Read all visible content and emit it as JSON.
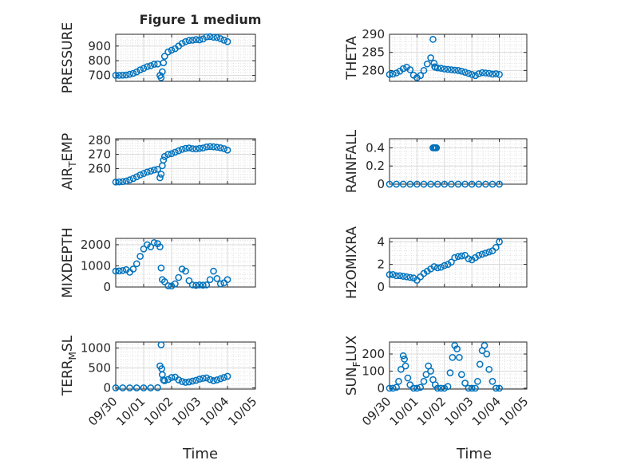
{
  "figure": {
    "title": "Figure 1 medium",
    "xlabel": "Time",
    "x_ticks": [
      "09/30",
      "10/01",
      "10/02",
      "10/03",
      "10/04",
      "10/05"
    ],
    "marker_color": "#0072BD",
    "axes_color": "#262626",
    "grid_color": "#d9d9d9"
  },
  "chart_data": [
    {
      "type": "scatter",
      "ylabel": "PRESSURE",
      "ylim": [
        660,
        980
      ],
      "y_ticks": [
        700,
        800,
        900
      ],
      "x": [
        "09/30 00:00",
        "09/30 03:00",
        "09/30 06:00",
        "09/30 09:00",
        "09/30 12:00",
        "09/30 15:00",
        "09/30 18:00",
        "09/30 21:00",
        "10/01 00:00",
        "10/01 03:00",
        "10/01 06:00",
        "10/01 09:00",
        "10/01 12:00",
        "10/01 14:00",
        "10/01 15:00",
        "10/01 16:00",
        "10/01 17:00",
        "10/01 18:00",
        "10/01 21:00",
        "10/02 00:00",
        "10/02 03:00",
        "10/02 06:00",
        "10/02 09:00",
        "10/02 12:00",
        "10/02 15:00",
        "10/02 18:00",
        "10/02 21:00",
        "10/03 00:00",
        "10/03 03:00",
        "10/03 06:00",
        "10/03 09:00",
        "10/03 12:00",
        "10/03 15:00",
        "10/03 18:00",
        "10/03 21:00",
        "10/04 00:00"
      ],
      "y": [
        701,
        701,
        702,
        703,
        708,
        714,
        724,
        738,
        748,
        760,
        766,
        776,
        778,
        700,
        685,
        725,
        786,
        830,
        860,
        872,
        882,
        900,
        918,
        930,
        938,
        940,
        944,
        942,
        948,
        962,
        964,
        960,
        958,
        950,
        940,
        930
      ]
    },
    {
      "type": "scatter",
      "ylabel": "THETA",
      "ylim": [
        277,
        290
      ],
      "y_ticks": [
        280,
        285,
        290
      ],
      "x": [
        "09/30 00:00",
        "09/30 03:00",
        "09/30 06:00",
        "09/30 09:00",
        "09/30 12:00",
        "09/30 15:00",
        "09/30 18:00",
        "09/30 21:00",
        "10/01 00:00",
        "10/01 03:00",
        "10/01 06:00",
        "10/01 09:00",
        "10/01 12:00",
        "10/01 14:00",
        "10/01 15:00",
        "10/01 15:30",
        "10/01 16:00",
        "10/01 18:00",
        "10/01 21:00",
        "10/02 00:00",
        "10/02 03:00",
        "10/02 06:00",
        "10/02 09:00",
        "10/02 12:00",
        "10/02 15:00",
        "10/02 18:00",
        "10/02 21:00",
        "10/03 00:00",
        "10/03 03:00",
        "10/03 06:00",
        "10/03 09:00",
        "10/03 12:00",
        "10/03 15:00",
        "10/03 18:00",
        "10/03 21:00",
        "10/04 00:00"
      ],
      "y": [
        278.9,
        279.0,
        279.3,
        279.8,
        280.5,
        280.9,
        280.2,
        278.7,
        278.0,
        278.6,
        280.0,
        281.8,
        283.5,
        288.6,
        282.0,
        281.0,
        280.9,
        280.7,
        280.6,
        280.4,
        280.3,
        280.2,
        280.1,
        280.0,
        279.8,
        279.5,
        279.2,
        278.9,
        278.6,
        279.1,
        279.4,
        279.3,
        279.2,
        279.0,
        279.1,
        278.9
      ]
    },
    {
      "type": "scatter",
      "ylabel": "AIR_TEMP",
      "ylim": [
        249,
        281
      ],
      "y_ticks": [
        260,
        270,
        280
      ],
      "x": [
        "09/30 00:00",
        "09/30 03:00",
        "09/30 06:00",
        "09/30 09:00",
        "09/30 12:00",
        "09/30 15:00",
        "09/30 18:00",
        "09/30 21:00",
        "10/01 00:00",
        "10/01 03:00",
        "10/01 06:00",
        "10/01 09:00",
        "10/01 12:00",
        "10/01 14:00",
        "10/01 15:00",
        "10/01 16:00",
        "10/01 17:00",
        "10/01 18:00",
        "10/01 21:00",
        "10/02 00:00",
        "10/02 03:00",
        "10/02 06:00",
        "10/02 09:00",
        "10/02 12:00",
        "10/02 15:00",
        "10/02 18:00",
        "10/02 21:00",
        "10/03 00:00",
        "10/03 03:00",
        "10/03 06:00",
        "10/03 09:00",
        "10/03 12:00",
        "10/03 15:00",
        "10/03 18:00",
        "10/03 21:00",
        "10/04 00:00"
      ],
      "y": [
        250.5,
        250.6,
        250.8,
        251.2,
        252.0,
        253.0,
        254.2,
        255.5,
        256.5,
        257.5,
        258.2,
        259.0,
        259.5,
        253.5,
        256.0,
        262.0,
        266.0,
        268.5,
        270.0,
        270.5,
        271.5,
        272.5,
        273.5,
        274.2,
        274.5,
        274.0,
        273.8,
        274.2,
        274.5,
        275.2,
        275.5,
        275.3,
        275.0,
        274.6,
        274.0,
        273.0
      ]
    },
    {
      "type": "scatter",
      "ylabel": "RAINFALL",
      "ylim": [
        0,
        0.5
      ],
      "y_ticks": [
        0,
        0.2,
        0.4
      ],
      "x": [
        "09/30 00:00",
        "09/30 06:00",
        "09/30 12:00",
        "09/30 18:00",
        "10/01 00:00",
        "10/01 06:00",
        "10/01 12:00",
        "10/01 14:00",
        "10/01 15:00",
        "10/01 16:00",
        "10/01 17:00",
        "10/01 18:00",
        "10/02 00:00",
        "10/02 06:00",
        "10/02 12:00",
        "10/02 18:00",
        "10/03 00:00",
        "10/03 06:00",
        "10/03 12:00",
        "10/03 18:00",
        "10/04 00:00"
      ],
      "y": [
        0,
        0,
        0,
        0,
        0,
        0,
        0,
        0.4,
        0.4,
        0.4,
        0.4,
        0,
        0,
        0,
        0,
        0,
        0,
        0,
        0,
        0,
        0
      ]
    },
    {
      "type": "scatter",
      "ylabel": "MIXDEPTH",
      "ylim": [
        0,
        2300
      ],
      "y_ticks": [
        0,
        1000,
        2000
      ],
      "x": [
        "09/30 00:00",
        "09/30 03:00",
        "09/30 06:00",
        "09/30 09:00",
        "09/30 12:00",
        "09/30 15:00",
        "09/30 18:00",
        "09/30 21:00",
        "10/01 00:00",
        "10/01 03:00",
        "10/01 06:00",
        "10/01 09:00",
        "10/01 12:00",
        "10/01 14:00",
        "10/01 15:00",
        "10/01 16:00",
        "10/01 18:00",
        "10/01 21:00",
        "10/02 00:00",
        "10/02 03:00",
        "10/02 06:00",
        "10/02 09:00",
        "10/02 12:00",
        "10/02 15:00",
        "10/02 18:00",
        "10/02 21:00",
        "10/03 00:00",
        "10/03 03:00",
        "10/03 06:00",
        "10/03 09:00",
        "10/03 12:00",
        "10/03 15:00",
        "10/03 18:00",
        "10/03 21:00",
        "10/04 00:00"
      ],
      "y": [
        750,
        760,
        780,
        820,
        700,
        850,
        1100,
        1450,
        1800,
        2000,
        1900,
        2100,
        2050,
        1900,
        900,
        350,
        250,
        60,
        50,
        150,
        450,
        850,
        750,
        300,
        100,
        80,
        100,
        90,
        100,
        350,
        750,
        400,
        150,
        200,
        350
      ]
    },
    {
      "type": "scatter",
      "ylabel": "H2OMIXRA",
      "ylim": [
        0,
        4.3
      ],
      "y_ticks": [
        0,
        2,
        4
      ],
      "x": [
        "09/30 00:00",
        "09/30 03:00",
        "09/30 06:00",
        "09/30 09:00",
        "09/30 12:00",
        "09/30 15:00",
        "09/30 18:00",
        "09/30 21:00",
        "10/01 00:00",
        "10/01 03:00",
        "10/01 06:00",
        "10/01 09:00",
        "10/01 12:00",
        "10/01 15:00",
        "10/01 18:00",
        "10/01 21:00",
        "10/02 00:00",
        "10/02 03:00",
        "10/02 06:00",
        "10/02 09:00",
        "10/02 12:00",
        "10/02 15:00",
        "10/02 18:00",
        "10/02 21:00",
        "10/03 00:00",
        "10/03 03:00",
        "10/03 06:00",
        "10/03 09:00",
        "10/03 12:00",
        "10/03 15:00",
        "10/03 18:00",
        "10/03 21:00",
        "10/04 00:00"
      ],
      "y": [
        1.1,
        1.1,
        1.0,
        1.0,
        0.95,
        0.9,
        0.85,
        0.8,
        0.6,
        0.9,
        1.2,
        1.4,
        1.6,
        1.8,
        1.7,
        1.75,
        1.9,
        2.0,
        2.2,
        2.6,
        2.7,
        2.75,
        2.8,
        2.5,
        2.4,
        2.6,
        2.8,
        2.9,
        3.0,
        3.1,
        3.2,
        3.5,
        4.0
      ]
    },
    {
      "type": "scatter",
      "ylabel": "TERR_MSL",
      "ylim": [
        -30,
        1150
      ],
      "y_ticks": [
        0,
        500,
        1000
      ],
      "x": [
        "09/30 00:00",
        "09/30 06:00",
        "09/30 12:00",
        "09/30 18:00",
        "10/01 00:00",
        "10/01 06:00",
        "10/01 12:00",
        "10/01 14:00",
        "10/01 15:00",
        "10/01 15:30",
        "10/01 16:00",
        "10/01 17:00",
        "10/01 18:00",
        "10/01 21:00",
        "10/02 00:00",
        "10/02 03:00",
        "10/02 06:00",
        "10/02 09:00",
        "10/02 12:00",
        "10/02 15:00",
        "10/02 18:00",
        "10/02 21:00",
        "10/03 00:00",
        "10/03 03:00",
        "10/03 06:00",
        "10/03 09:00",
        "10/03 12:00",
        "10/03 15:00",
        "10/03 18:00",
        "10/03 21:00",
        "10/04 00:00"
      ],
      "y": [
        0,
        0,
        0,
        0,
        0,
        0,
        5,
        550,
        1080,
        480,
        330,
        200,
        180,
        210,
        260,
        270,
        200,
        160,
        140,
        150,
        170,
        190,
        220,
        240,
        250,
        210,
        180,
        200,
        230,
        260,
        290
      ]
    },
    {
      "type": "scatter",
      "ylabel": "SUN_FLUX",
      "ylim": [
        -5,
        270
      ],
      "y_ticks": [
        0,
        100,
        200
      ],
      "x": [
        "09/30 00:00",
        "09/30 03:00",
        "09/30 06:00",
        "09/30 08:00",
        "09/30 10:00",
        "09/30 12:00",
        "09/30 13:00",
        "09/30 14:00",
        "09/30 16:00",
        "09/30 18:00",
        "09/30 21:00",
        "10/01 00:00",
        "10/01 03:00",
        "10/01 06:00",
        "10/01 08:00",
        "10/01 10:00",
        "10/01 12:00",
        "10/01 14:00",
        "10/01 16:00",
        "10/01 18:00",
        "10/01 21:00",
        "10/02 00:00",
        "10/02 03:00",
        "10/02 05:00",
        "10/02 07:00",
        "10/02 09:00",
        "10/02 11:00",
        "10/02 13:00",
        "10/02 15:00",
        "10/02 18:00",
        "10/02 21:00",
        "10/03 00:00",
        "10/03 03:00",
        "10/03 05:00",
        "10/03 07:00",
        "10/03 09:00",
        "10/03 11:00",
        "10/03 13:00",
        "10/03 15:00",
        "10/03 18:00",
        "10/03 21:00",
        "10/04 00:00"
      ],
      "y": [
        0,
        0,
        5,
        40,
        110,
        190,
        170,
        130,
        60,
        20,
        0,
        0,
        5,
        40,
        80,
        130,
        100,
        50,
        20,
        0,
        0,
        0,
        10,
        90,
        180,
        250,
        230,
        180,
        80,
        30,
        0,
        0,
        0,
        40,
        140,
        220,
        250,
        200,
        110,
        40,
        0,
        0
      ]
    }
  ]
}
